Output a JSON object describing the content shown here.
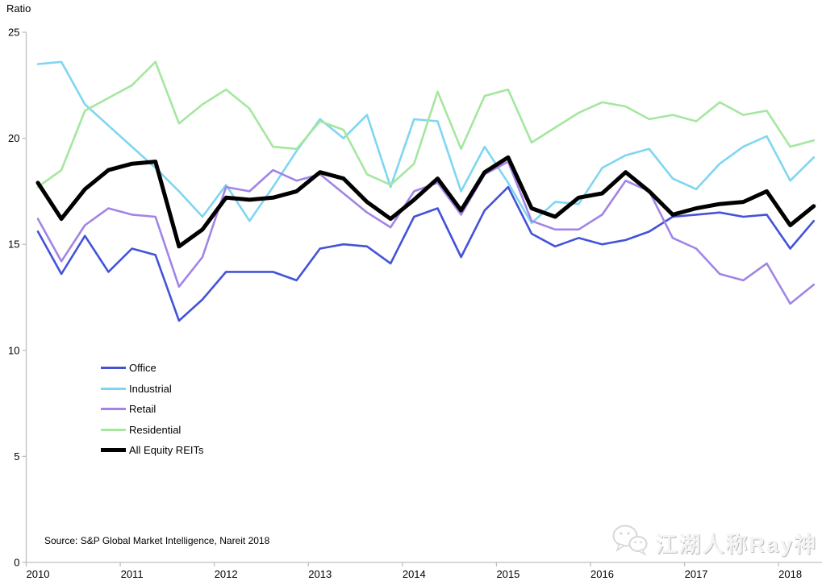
{
  "source_note": "Source: S&P Global Market Intelligence, Nareit 2018",
  "watermark": {
    "text": "江湖人称Ray神",
    "icon": "wechat-icon"
  },
  "colors": {
    "axis": "#BFBFBF",
    "text": "#000000",
    "watermark": "#E9E9E9"
  },
  "chart_data": {
    "type": "line",
    "title": "Ratio",
    "ylabel": "Ratio",
    "xlabel": "",
    "ylim": [
      0,
      25
    ],
    "y_ticks": [
      0,
      5,
      10,
      15,
      20,
      25
    ],
    "grid": false,
    "legend_position": "middle-left",
    "x_axis_labels": [
      "2010",
      "2011",
      "2012",
      "2013",
      "2014",
      "2015",
      "2016",
      "2017",
      "2018"
    ],
    "x": [
      "2010Q1",
      "2010Q2",
      "2010Q3",
      "2010Q4",
      "2011Q1",
      "2011Q2",
      "2011Q3",
      "2011Q4",
      "2012Q1",
      "2012Q2",
      "2012Q3",
      "2012Q4",
      "2013Q1",
      "2013Q2",
      "2013Q3",
      "2013Q4",
      "2014Q1",
      "2014Q2",
      "2014Q3",
      "2014Q4",
      "2015Q1",
      "2015Q2",
      "2015Q3",
      "2015Q4",
      "2016Q1",
      "2016Q2",
      "2016Q3",
      "2016Q4",
      "2017Q1",
      "2017Q2",
      "2017Q3",
      "2017Q4",
      "2018Q1",
      "2018Q2"
    ],
    "series": [
      {
        "name": "Office",
        "color": "#4353D9",
        "line_width": 2.6,
        "values": [
          15.6,
          13.6,
          15.4,
          13.7,
          14.8,
          14.5,
          11.4,
          12.4,
          13.7,
          13.7,
          13.7,
          13.3,
          14.8,
          15.0,
          14.9,
          14.1,
          16.3,
          16.7,
          14.4,
          16.6,
          17.7,
          15.5,
          14.9,
          15.3,
          15.0,
          15.2,
          15.6,
          16.3,
          16.4,
          16.5,
          16.3,
          16.4,
          14.8,
          16.1
        ]
      },
      {
        "name": "Industrial",
        "color": "#7FD6F0",
        "line_width": 2.6,
        "values": [
          23.5,
          23.6,
          21.6,
          20.6,
          19.6,
          18.6,
          17.5,
          16.3,
          17.8,
          16.1,
          17.7,
          19.4,
          20.9,
          20.0,
          21.1,
          17.7,
          20.9,
          20.8,
          17.5,
          19.6,
          17.9,
          16.0,
          17.0,
          16.9,
          18.6,
          19.2,
          19.5,
          18.1,
          17.6,
          18.8,
          19.6,
          20.1,
          18.0,
          19.1
        ]
      },
      {
        "name": "Retail",
        "color": "#A284E5",
        "line_width": 2.6,
        "values": [
          16.2,
          14.2,
          15.9,
          16.7,
          16.4,
          16.3,
          13.0,
          14.4,
          17.7,
          17.5,
          18.5,
          18.0,
          18.3,
          17.4,
          16.5,
          15.8,
          17.5,
          17.9,
          16.4,
          18.3,
          18.9,
          16.1,
          15.7,
          15.7,
          16.4,
          18.0,
          17.5,
          15.3,
          14.8,
          13.6,
          13.3,
          14.1,
          12.2,
          13.1
        ]
      },
      {
        "name": "Residential",
        "color": "#A4E79F",
        "line_width": 2.6,
        "values": [
          17.7,
          18.5,
          21.3,
          21.9,
          22.5,
          23.6,
          20.7,
          21.6,
          22.3,
          21.4,
          19.6,
          19.5,
          20.8,
          20.4,
          18.3,
          17.8,
          18.8,
          22.2,
          19.5,
          22.0,
          22.3,
          19.8,
          20.5,
          21.2,
          21.7,
          21.5,
          20.9,
          21.1,
          20.8,
          21.7,
          21.1,
          21.3,
          19.6,
          19.9
        ]
      },
      {
        "name": "All Equity REITs",
        "color": "#000000",
        "line_width": 5,
        "values": [
          17.9,
          16.2,
          17.6,
          18.5,
          18.8,
          18.9,
          14.9,
          15.7,
          17.2,
          17.1,
          17.2,
          17.5,
          18.4,
          18.1,
          17.0,
          16.2,
          17.1,
          18.1,
          16.6,
          18.4,
          19.1,
          16.7,
          16.3,
          17.2,
          17.4,
          18.4,
          17.5,
          16.4,
          16.7,
          16.9,
          17.0,
          17.5,
          15.9,
          16.8
        ]
      }
    ]
  }
}
